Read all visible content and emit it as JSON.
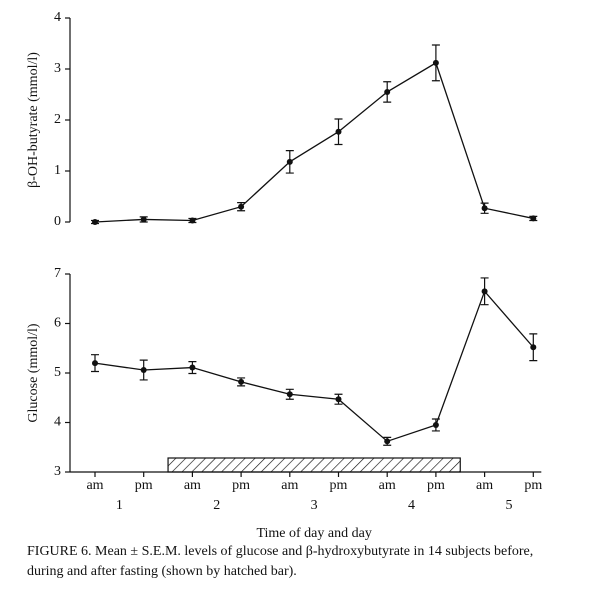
{
  "chart_data": [
    {
      "type": "line",
      "ylabel": "β-OH-butyrate (mmol/l)",
      "values": [
        0,
        0.05,
        0.03,
        0.3,
        1.18,
        1.77,
        2.55,
        3.12,
        0.27,
        0.07
      ],
      "errors": [
        0.03,
        0.05,
        0.04,
        0.08,
        0.22,
        0.25,
        0.2,
        0.35,
        0.1,
        0.04
      ],
      "ylim": [
        0,
        4
      ],
      "yticks": [
        0,
        1,
        2,
        3,
        4
      ],
      "color": "#111111"
    },
    {
      "type": "line",
      "ylabel": "Glucose (mmol/l)",
      "xlabel": "Time of day and day",
      "categories": [
        "am",
        "pm",
        "am",
        "pm",
        "am",
        "pm",
        "am",
        "pm",
        "am",
        "pm"
      ],
      "groups": [
        "1",
        "2",
        "3",
        "4",
        "5"
      ],
      "values": [
        5.2,
        5.06,
        5.11,
        4.82,
        4.57,
        4.47,
        3.62,
        3.95,
        6.65,
        5.52
      ],
      "errors": [
        0.17,
        0.2,
        0.12,
        0.08,
        0.1,
        0.1,
        0.08,
        0.12,
        0.27,
        0.27
      ],
      "ylim": [
        3,
        7
      ],
      "yticks": [
        3,
        4,
        5,
        6,
        7
      ],
      "hatched_span": [
        1.5,
        7.5
      ],
      "color": "#111111"
    }
  ],
  "caption": "FIGURE 6. Mean ± S.E.M. levels of glucose and β-hydroxybutyrate in 14 subjects before, during and after fasting (shown by hatched bar)."
}
